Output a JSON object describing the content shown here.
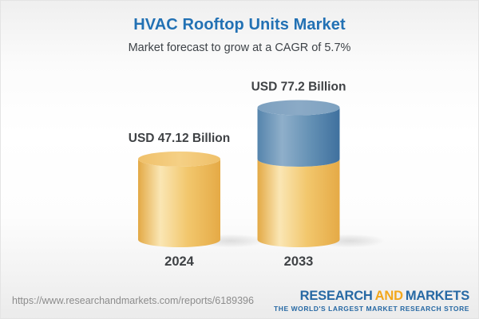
{
  "page": {
    "title": "HVAC Rooftop Units Market",
    "subtitle": "Market forecast to grow at a CAGR of 5.7%"
  },
  "chart_data": {
    "type": "bar",
    "variant": "3d-cylinder-stacked",
    "title": "HVAC Rooftop Units Market",
    "subtitle": "Market forecast to grow at a CAGR of 5.7%",
    "unit": "USD Billion",
    "cagr_percent": 5.7,
    "categories": [
      "2024",
      "2033"
    ],
    "values": [
      47.12,
      77.2
    ],
    "value_labels": [
      "USD 47.12 Billion",
      "USD 77.2 Billion"
    ],
    "legend": "none",
    "grid": false,
    "bars": [
      {
        "category": "2024",
        "value": 47.12,
        "value_label": "USD 47.12 Billion",
        "segments": [
          {
            "color_key": "gold",
            "value": 47.12
          }
        ]
      },
      {
        "category": "2033",
        "value": 77.2,
        "value_label": "USD 77.2 Billion",
        "segments": [
          {
            "color_key": "gold",
            "value": 47.12
          },
          {
            "color_key": "blue",
            "value": 30.08
          }
        ]
      }
    ],
    "colors": {
      "gold": "#F2C366",
      "blue": "#5E89B0",
      "label_text": "#3F4245",
      "title_blue": "#2271B4"
    }
  },
  "footer": {
    "url": "https://www.researchandmarkets.com/reports/6189396",
    "logo": {
      "word1": "RESEARCH",
      "word2": "AND",
      "word3": "MARKETS",
      "tagline": "THE WORLD'S LARGEST MARKET RESEARCH STORE",
      "blue": "#2769A4",
      "gold": "#F2A71B"
    }
  }
}
